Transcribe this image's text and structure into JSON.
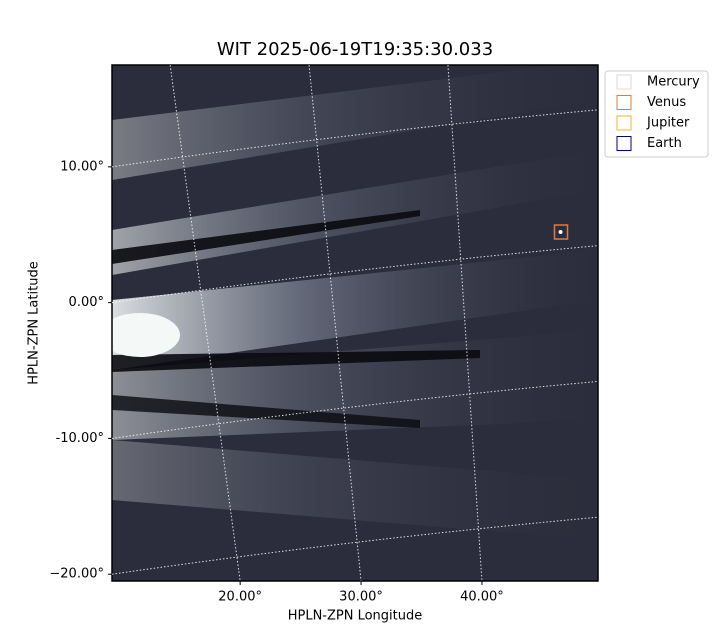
{
  "chart_data": {
    "type": "image",
    "title": "WIT 2025-06-19T19:35:30.033",
    "x_label": "HPLN-ZPN Longitude",
    "y_label": "HPLN-ZPN Latitude",
    "xlim": [
      9.4,
      49.6
    ],
    "ylim": [
      -20.5,
      17.5
    ],
    "xticks": [
      {
        "value": 20,
        "label": "20.00°"
      },
      {
        "value": 30,
        "label": "30.00°"
      },
      {
        "value": 40,
        "label": "40.00°"
      }
    ],
    "yticks": [
      {
        "value": 10,
        "label": "10.00°"
      },
      {
        "value": 0,
        "label": "0.00°"
      },
      {
        "value": -10,
        "label": "-10.00°"
      },
      {
        "value": -20,
        "label": "−20.00°"
      }
    ],
    "grid": true,
    "legend": "upper right",
    "series": [
      {
        "name": "Mercury",
        "color": "#d9d9d9"
      },
      {
        "name": "Venus",
        "color": "#e07b39",
        "x": [
          46.5
        ],
        "values": [
          5.2
        ]
      },
      {
        "name": "Jupiter",
        "color": "#e8b820"
      },
      {
        "name": "Earth",
        "color": "#000080"
      }
    ]
  }
}
